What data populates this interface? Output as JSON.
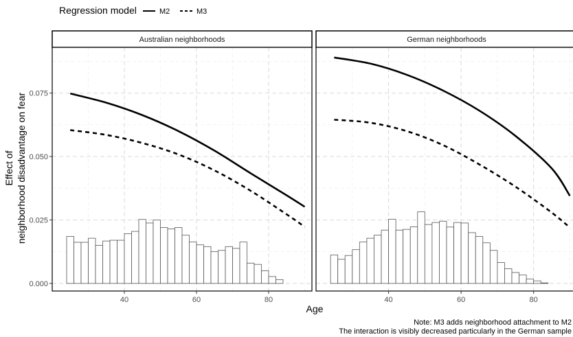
{
  "chart_data": {
    "type": "line",
    "legend": {
      "title": "Regression model",
      "position": "top-left",
      "entries": [
        {
          "name": "M2",
          "style": "solid"
        },
        {
          "name": "M3",
          "style": "dashed"
        }
      ]
    },
    "xlabel": "Age",
    "ylabel_lines": [
      "Effect of",
      "neighborhood disadvantage on fear"
    ],
    "xlim": [
      20,
      92
    ],
    "ylim": [
      -0.003,
      0.093
    ],
    "x_ticks": [
      40,
      60,
      80
    ],
    "x_tick_labels": [
      "40",
      "60",
      "80"
    ],
    "y_ticks": [
      0,
      0.025,
      0.05,
      0.075
    ],
    "y_tick_labels": [
      "0.000",
      "0.025",
      "0.050",
      "0.075"
    ],
    "grid": true,
    "note_lines": [
      "Note: M3 adds neighborhood attachment to M2",
      "The interaction is visibly decreased particularly in the German sample"
    ],
    "panels": [
      {
        "strip": "Australian neighborhoods",
        "series": [
          {
            "name": "M2",
            "style": "solid",
            "x": [
              25,
              35,
              45,
              55,
              65,
              75,
              85,
              90
            ],
            "y": [
              0.0748,
              0.0712,
              0.0663,
              0.06,
              0.0523,
              0.0434,
              0.0347,
              0.0302
            ]
          },
          {
            "name": "M3",
            "style": "dashed",
            "x": [
              25,
              35,
              45,
              55,
              65,
              75,
              85,
              90
            ],
            "y": [
              0.0604,
              0.0585,
              0.0553,
              0.0508,
              0.0445,
              0.0365,
              0.0272,
              0.0223
            ]
          }
        ],
        "histogram": {
          "bin_start": 24,
          "bin_width": 2,
          "heights": [
            0.0185,
            0.0162,
            0.0162,
            0.0178,
            0.015,
            0.0167,
            0.017,
            0.017,
            0.0196,
            0.0205,
            0.0252,
            0.0238,
            0.025,
            0.022,
            0.0215,
            0.022,
            0.019,
            0.0163,
            0.0152,
            0.0145,
            0.0125,
            0.013,
            0.0145,
            0.0138,
            0.0163,
            0.008,
            0.0075,
            0.005,
            0.0027,
            0.0015
          ]
        }
      },
      {
        "strip": "German neighborhoods",
        "series": [
          {
            "name": "M2",
            "style": "solid",
            "x": [
              25,
              35,
              45,
              55,
              65,
              75,
              85,
              90
            ],
            "y": [
              0.089,
              0.0866,
              0.0822,
              0.076,
              0.0681,
              0.0581,
              0.0453,
              0.0345
            ]
          },
          {
            "name": "M3",
            "style": "dashed",
            "x": [
              25,
              35,
              45,
              55,
              65,
              75,
              85,
              90
            ],
            "y": [
              0.0645,
              0.0633,
              0.06,
              0.0545,
              0.0469,
              0.0381,
              0.0279,
              0.022
            ]
          }
        ],
        "histogram": {
          "bin_start": 24,
          "bin_width": 2,
          "heights": [
            0.0112,
            0.0095,
            0.011,
            0.0133,
            0.0163,
            0.0178,
            0.019,
            0.021,
            0.0253,
            0.021,
            0.0213,
            0.0223,
            0.0282,
            0.0232,
            0.024,
            0.0245,
            0.0222,
            0.024,
            0.0238,
            0.02,
            0.0185,
            0.016,
            0.013,
            0.0082,
            0.0058,
            0.0043,
            0.0033,
            0.0017,
            0.001,
            0.0002
          ]
        }
      }
    ]
  }
}
